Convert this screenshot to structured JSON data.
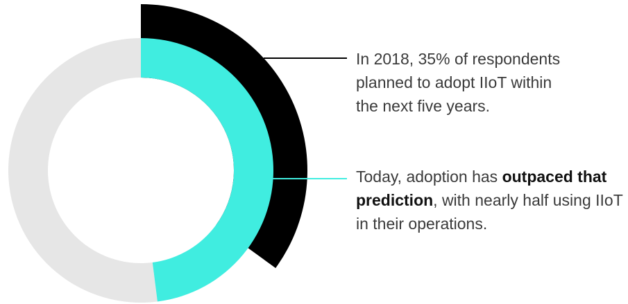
{
  "chart_data": {
    "type": "pie",
    "series": [
      {
        "value": 35,
        "color": "#000000"
      },
      {
        "value": 48,
        "color": "#40EDE0"
      }
    ],
    "track_color": "#E6E6E6"
  },
  "annotations": [
    {
      "text": "In 2018, 35% of respondents planned to adopt IIoT within the next five years.",
      "lines": [
        "In 2018, 35% of respondents",
        "planned to adopt IIoT within",
        "the next five years."
      ],
      "line_color": "#000000"
    },
    {
      "text": "Today, adoption has outpaced that prediction, with nearly half using IIoT in their operations.",
      "part1": "Today, adoption has ",
      "bold": "outpaced that prediction",
      "part2": ", with nearly half using IIoT in their operations.",
      "line_color": "#40EDE0"
    }
  ]
}
